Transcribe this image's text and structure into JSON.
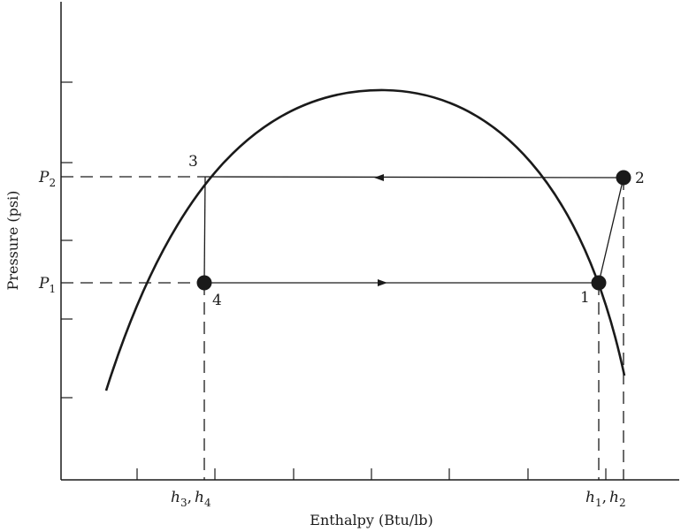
{
  "xlabel": "Enthalpy (Btu/lb)",
  "ylabel": "Pressure (psi)",
  "y_marks": {
    "p2": "P",
    "p2_sub": "2",
    "p1": "P",
    "p1_sub": "1"
  },
  "x_marks": {
    "left": {
      "a": "h",
      "a_sub": "3",
      "sep": ",",
      "b": "h",
      "b_sub": "4"
    },
    "right": {
      "a": "h",
      "a_sub": "1",
      "sep": ",",
      "b": "h",
      "b_sub": "2"
    }
  },
  "points": [
    "1",
    "2",
    "3",
    "4"
  ],
  "colors": {
    "ink": "#1a1a1a",
    "background": "#ffffff"
  }
}
